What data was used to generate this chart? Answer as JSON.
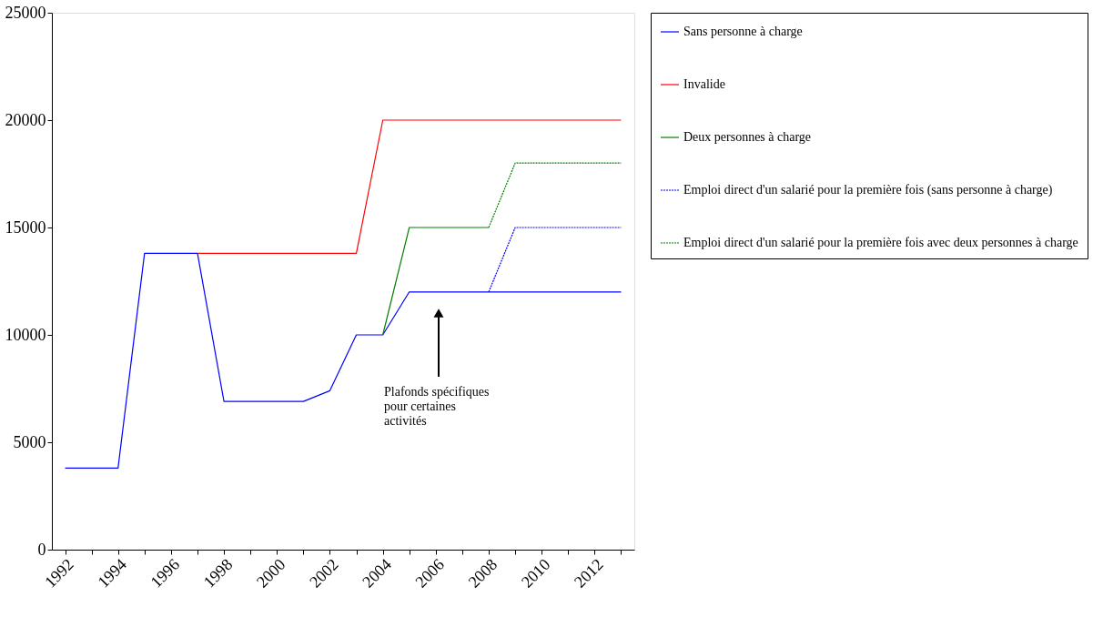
{
  "chart_data": {
    "type": "line",
    "categories": [
      "1992",
      null,
      "1994",
      null,
      "1996",
      null,
      "1998",
      null,
      "2000",
      null,
      "2002",
      null,
      "2004",
      null,
      "2006",
      null,
      "2008",
      null,
      "2010",
      null,
      "2012",
      null
    ],
    "ylim": [
      0,
      25000
    ],
    "yticks": [
      0,
      5000,
      10000,
      15000,
      20000,
      25000
    ],
    "grid": false,
    "legend": "right",
    "marker": "none",
    "series": [
      {
        "name": "Sans personne à charge",
        "color": "#0000ff",
        "line_style": "solid",
        "values": [
          3800,
          3800,
          3800,
          13800,
          13800,
          13800,
          6900,
          6900,
          6900,
          6900,
          7400,
          10000,
          10000,
          12000,
          12000,
          12000,
          12000,
          12000,
          12000,
          12000,
          12000,
          12000
        ]
      },
      {
        "name": "Invalide",
        "color": "#ff0000",
        "line_style": "solid",
        "values": [
          null,
          null,
          null,
          null,
          null,
          13800,
          13800,
          13800,
          13800,
          13800,
          13800,
          13800,
          20000,
          20000,
          20000,
          20000,
          20000,
          20000,
          20000,
          20000,
          20000,
          20000
        ]
      },
      {
        "name": "Deux personnes à charge",
        "color": "#008000",
        "line_style": "solid",
        "values": [
          null,
          null,
          null,
          null,
          null,
          null,
          null,
          null,
          null,
          null,
          null,
          null,
          10000,
          15000,
          15000,
          15000,
          15000,
          null,
          null,
          null,
          null,
          null
        ]
      },
      {
        "name": "Emploi direct d'un salarié pour la première fois (sans personne à charge)",
        "color": "#0000ff",
        "line_style": "dotted",
        "values": [
          null,
          null,
          null,
          null,
          null,
          null,
          null,
          null,
          null,
          null,
          null,
          null,
          null,
          null,
          null,
          null,
          12000,
          15000,
          15000,
          15000,
          15000,
          15000
        ]
      },
      {
        "name": "Emploi direct d'un salarié pour la première fois avec deux personnes à charge",
        "color": "#008000",
        "line_style": "dotted",
        "values": [
          null,
          null,
          null,
          null,
          null,
          null,
          null,
          null,
          null,
          null,
          null,
          null,
          null,
          null,
          null,
          null,
          15000,
          18000,
          18000,
          18000,
          18000,
          18000
        ]
      }
    ],
    "annotations": [
      "Plafonds spécifiques pour certaines activités"
    ]
  }
}
